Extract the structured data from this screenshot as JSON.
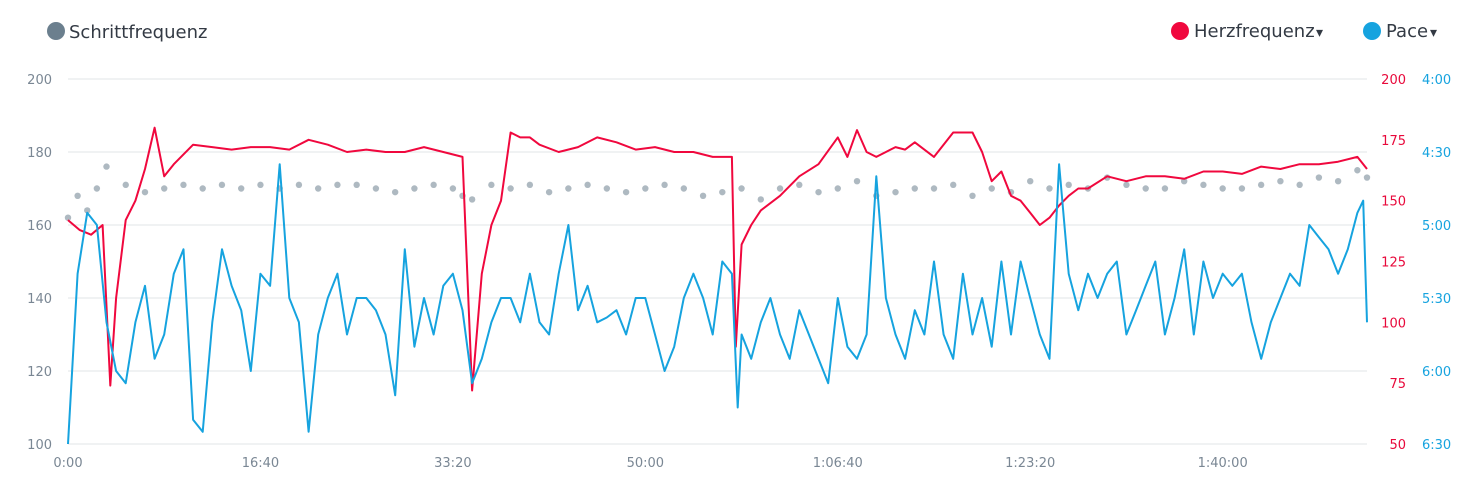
{
  "legend": {
    "cadence": {
      "label": "Schrittfrequenz",
      "color": "#6b7f8e"
    },
    "heart_rate": {
      "label": "Herzfrequenz",
      "arrow": "▾",
      "color": "#f0083e"
    },
    "pace": {
      "label": "Pace",
      "arrow": "▾",
      "color": "#16a3df"
    }
  },
  "chart_data": {
    "type": "line",
    "x_ticks": [
      "0:00",
      "16:40",
      "33:20",
      "50:00",
      "1:06:40",
      "1:23:20",
      "1:40:00"
    ],
    "x_tick_seconds": [
      0,
      1000,
      2000,
      3000,
      4000,
      5000,
      6000
    ],
    "xlim_seconds": [
      0,
      6750
    ],
    "grid": true,
    "axes": {
      "cadence": {
        "side": "left",
        "ylim": [
          100,
          200
        ],
        "ticks": [
          "200",
          "180",
          "160",
          "140",
          "120",
          "100"
        ],
        "tick_values": [
          200,
          180,
          160,
          140,
          120,
          100
        ]
      },
      "heart_rate": {
        "side": "right",
        "ylim": [
          50,
          200
        ],
        "ticks": [
          "200",
          "175",
          "150",
          "125",
          "100",
          "75",
          "50"
        ],
        "tick_values": [
          200,
          175,
          150,
          125,
          100,
          75,
          50
        ]
      },
      "pace": {
        "side": "right",
        "ylim": [
          "6:30",
          "4:00"
        ],
        "ticks": [
          "4:00",
          "4:30",
          "5:00",
          "5:30",
          "6:00",
          "6:30"
        ],
        "tick_values": [
          240,
          270,
          300,
          330,
          360,
          390
        ]
      }
    },
    "series": [
      {
        "name": "Schrittfrequenz",
        "kind": "scatter",
        "axis": "cadence",
        "x": [
          0,
          50,
          100,
          150,
          200,
          300,
          400,
          500,
          600,
          700,
          800,
          900,
          1000,
          1100,
          1200,
          1300,
          1400,
          1500,
          1600,
          1700,
          1800,
          1900,
          2000,
          2050,
          2100,
          2200,
          2300,
          2400,
          2500,
          2600,
          2700,
          2800,
          2900,
          3000,
          3100,
          3200,
          3300,
          3400,
          3500,
          3600,
          3700,
          3800,
          3900,
          4000,
          4100,
          4200,
          4300,
          4400,
          4500,
          4600,
          4700,
          4800,
          4900,
          5000,
          5100,
          5200,
          5300,
          5400,
          5500,
          5600,
          5700,
          5800,
          5900,
          6000,
          6100,
          6200,
          6300,
          6400,
          6500,
          6600,
          6700,
          6750
        ],
        "y": [
          162,
          168,
          164,
          170,
          176,
          171,
          169,
          170,
          171,
          170,
          171,
          170,
          171,
          170,
          171,
          170,
          171,
          171,
          170,
          169,
          170,
          171,
          170,
          168,
          167,
          171,
          170,
          171,
          169,
          170,
          171,
          170,
          169,
          170,
          171,
          170,
          168,
          169,
          170,
          167,
          170,
          171,
          169,
          170,
          172,
          168,
          169,
          170,
          170,
          171,
          168,
          170,
          169,
          172,
          170,
          171,
          170,
          173,
          171,
          170,
          170,
          172,
          171,
          170,
          170,
          171,
          172,
          171,
          173,
          172,
          175,
          173
        ]
      },
      {
        "name": "Herzfrequenz",
        "kind": "line",
        "axis": "heart_rate",
        "x": [
          0,
          60,
          120,
          180,
          220,
          250,
          300,
          350,
          400,
          450,
          500,
          550,
          650,
          750,
          850,
          950,
          1050,
          1150,
          1250,
          1350,
          1450,
          1550,
          1650,
          1750,
          1850,
          1950,
          2050,
          2100,
          2150,
          2200,
          2250,
          2300,
          2350,
          2400,
          2450,
          2550,
          2650,
          2750,
          2850,
          2950,
          3050,
          3150,
          3250,
          3350,
          3420,
          3450,
          3470,
          3500,
          3550,
          3600,
          3700,
          3800,
          3900,
          4000,
          4050,
          4100,
          4150,
          4200,
          4250,
          4300,
          4350,
          4400,
          4500,
          4600,
          4700,
          4750,
          4800,
          4850,
          4900,
          4950,
          5000,
          5050,
          5100,
          5150,
          5200,
          5250,
          5300,
          5400,
          5500,
          5600,
          5700,
          5800,
          5900,
          6000,
          6100,
          6200,
          6300,
          6400,
          6500,
          6600,
          6700,
          6750
        ],
        "y": [
          142,
          138,
          136,
          140,
          74,
          110,
          142,
          150,
          163,
          180,
          160,
          165,
          173,
          172,
          171,
          172,
          172,
          171,
          175,
          173,
          170,
          171,
          170,
          170,
          172,
          170,
          168,
          72,
          120,
          140,
          150,
          178,
          176,
          176,
          173,
          170,
          172,
          176,
          174,
          171,
          172,
          170,
          170,
          168,
          168,
          168,
          90,
          132,
          140,
          146,
          152,
          160,
          165,
          176,
          168,
          179,
          170,
          168,
          170,
          172,
          171,
          174,
          168,
          178,
          178,
          170,
          158,
          162,
          152,
          150,
          145,
          140,
          143,
          148,
          152,
          155,
          155,
          160,
          158,
          160,
          160,
          159,
          162,
          162,
          161,
          164,
          163,
          165,
          165,
          166,
          168,
          163
        ]
      },
      {
        "name": "Pace",
        "kind": "line",
        "axis": "pace",
        "x": [
          0,
          50,
          100,
          150,
          200,
          250,
          300,
          350,
          400,
          450,
          500,
          550,
          600,
          650,
          700,
          750,
          800,
          850,
          900,
          950,
          1000,
          1050,
          1100,
          1150,
          1200,
          1250,
          1300,
          1350,
          1400,
          1450,
          1500,
          1550,
          1600,
          1650,
          1700,
          1750,
          1800,
          1850,
          1900,
          1950,
          2000,
          2050,
          2100,
          2150,
          2200,
          2250,
          2300,
          2350,
          2400,
          2450,
          2500,
          2550,
          2600,
          2650,
          2700,
          2750,
          2800,
          2850,
          2900,
          2950,
          3000,
          3050,
          3100,
          3150,
          3200,
          3250,
          3300,
          3350,
          3400,
          3450,
          3480,
          3500,
          3550,
          3600,
          3650,
          3700,
          3750,
          3800,
          3850,
          3900,
          3950,
          4000,
          4050,
          4100,
          4150,
          4200,
          4250,
          4300,
          4350,
          4400,
          4450,
          4500,
          4550,
          4600,
          4650,
          4700,
          4750,
          4800,
          4850,
          4900,
          4950,
          5000,
          5050,
          5100,
          5150,
          5200,
          5250,
          5300,
          5350,
          5400,
          5450,
          5500,
          5550,
          5600,
          5650,
          5700,
          5750,
          5800,
          5850,
          5900,
          5950,
          6000,
          6050,
          6100,
          6150,
          6200,
          6250,
          6300,
          6350,
          6400,
          6450,
          6500,
          6550,
          6600,
          6650,
          6700,
          6730,
          6750
        ],
        "y": [
          390,
          320,
          295,
          300,
          340,
          360,
          365,
          340,
          325,
          355,
          345,
          320,
          310,
          380,
          385,
          340,
          310,
          325,
          335,
          360,
          320,
          325,
          275,
          330,
          340,
          385,
          345,
          330,
          320,
          345,
          330,
          330,
          335,
          345,
          370,
          310,
          350,
          330,
          345,
          325,
          320,
          335,
          365,
          355,
          340,
          330,
          330,
          340,
          320,
          340,
          345,
          320,
          300,
          335,
          325,
          340,
          338,
          335,
          345,
          330,
          330,
          345,
          360,
          350,
          330,
          320,
          330,
          345,
          315,
          320,
          375,
          345,
          355,
          340,
          330,
          345,
          355,
          335,
          345,
          355,
          365,
          330,
          350,
          355,
          345,
          280,
          330,
          345,
          355,
          335,
          345,
          315,
          345,
          355,
          320,
          345,
          330,
          350,
          315,
          345,
          315,
          330,
          345,
          355,
          275,
          320,
          335,
          320,
          330,
          320,
          315,
          345,
          335,
          325,
          315,
          345,
          330,
          310,
          345,
          315,
          330,
          320,
          325,
          320,
          340,
          355,
          340,
          330,
          320,
          325,
          300,
          305,
          310,
          320,
          310,
          295,
          290,
          340
        ]
      }
    ]
  }
}
